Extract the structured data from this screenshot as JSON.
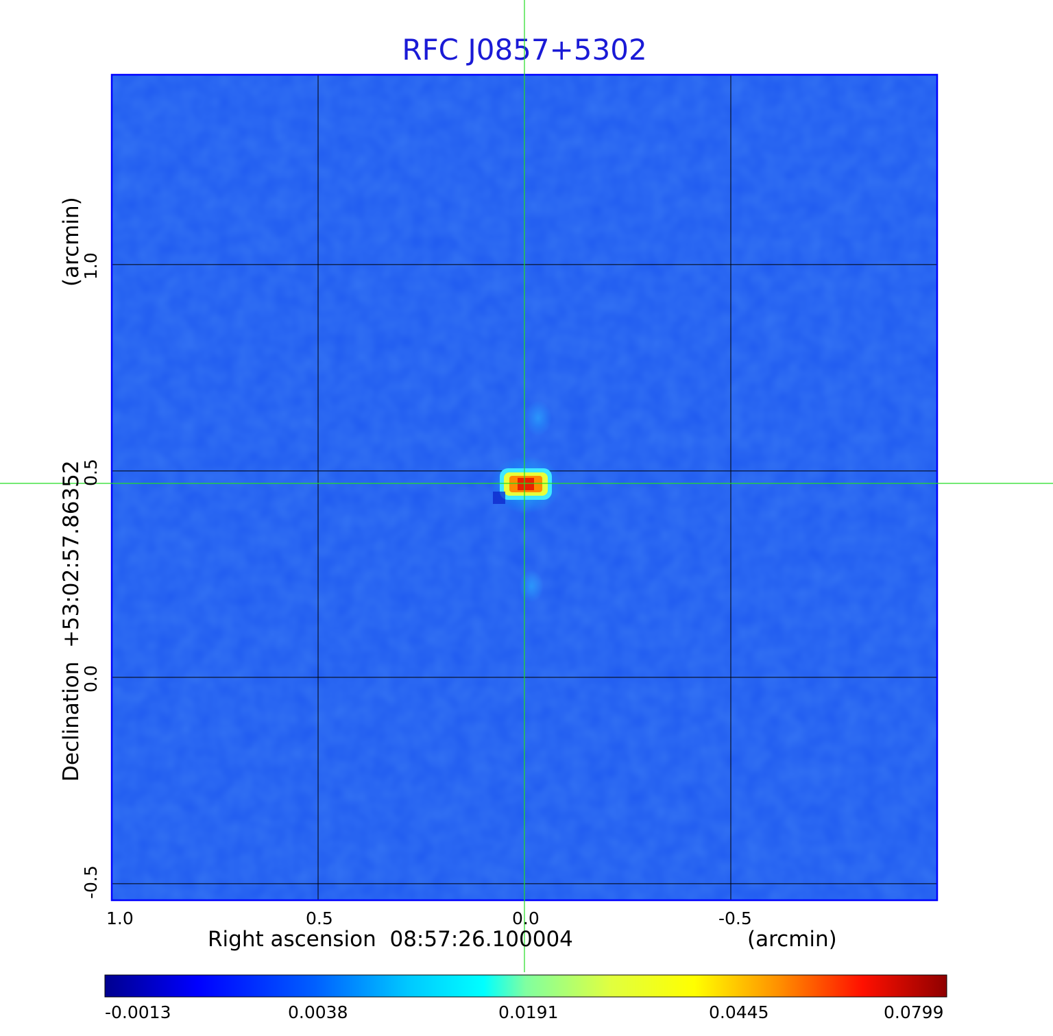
{
  "chart_data": {
    "type": "heatmap",
    "title": "RFC J0857+5302",
    "xlabel": "Right ascension  08:57:26.100004",
    "xunit": "(arcmin)",
    "ylabel": "Declination  +53:02:57.86352",
    "yunit": "(arcmin)",
    "xlim": [
      1.0,
      -1.0
    ],
    "ylim": [
      -0.54,
      1.46
    ],
    "x_ticks": [
      {
        "value": 1.0,
        "label": "1.0"
      },
      {
        "value": 0.5,
        "label": "0.5"
      },
      {
        "value": 0.0,
        "label": "0.0"
      },
      {
        "value": -0.5,
        "label": "-0.5"
      }
    ],
    "y_ticks": [
      {
        "value": -0.5,
        "label": "-0.5"
      },
      {
        "value": 0.0,
        "label": "0.0"
      },
      {
        "value": 0.5,
        "label": "0.5"
      },
      {
        "value": 1.0,
        "label": "1.0"
      }
    ],
    "grid": true,
    "crosshair": {
      "x": 0.0,
      "y": 0.47
    },
    "peak": {
      "x": 0.0,
      "y": 0.47
    },
    "colorbar": {
      "ticks": [
        "-0.0013",
        "0.0038",
        "0.0191",
        "0.0445",
        "0.0799"
      ],
      "colormap": "jet"
    }
  },
  "colors": {
    "title": "#1a1ad6",
    "background_map": "#1f5af0",
    "crosshair": "#22dd22",
    "grid": "#000000"
  }
}
